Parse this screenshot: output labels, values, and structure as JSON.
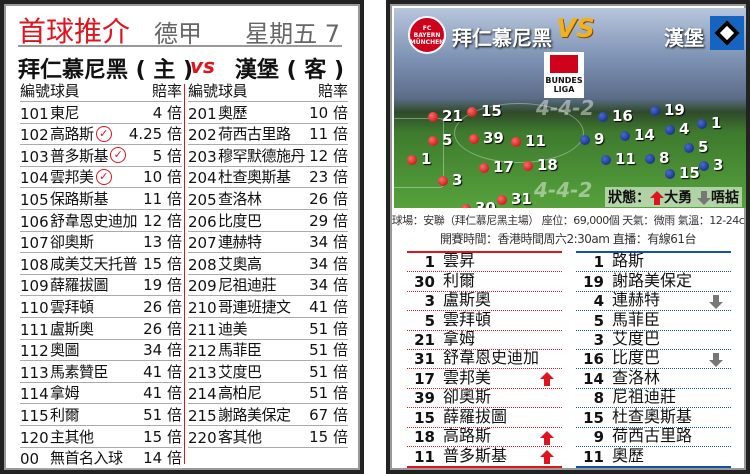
{
  "left": {
    "title": "首球推介",
    "league": "德甲",
    "day": "星期五 7",
    "home_team": "拜仁慕尼黑 ( 主 )",
    "vs": "vs",
    "away_team": "漢堡 ( 客 )",
    "headers": {
      "no": "編號",
      "player": "球員",
      "odds": "賠率"
    },
    "home_rows": [
      {
        "no": "101",
        "player": "東尼",
        "odds": "4 倍",
        "pick": false
      },
      {
        "no": "102",
        "player": "高路斯",
        "odds": "4.25 倍",
        "pick": true
      },
      {
        "no": "103",
        "player": "普多斯基",
        "odds": "5 倍",
        "pick": true
      },
      {
        "no": "104",
        "player": "雲邦美",
        "odds": "10 倍",
        "pick": true
      },
      {
        "no": "105",
        "player": "保路斯基",
        "odds": "11 倍",
        "pick": false
      },
      {
        "no": "106",
        "player": "舒韋恩史迪加",
        "odds": "12 倍",
        "pick": false
      },
      {
        "no": "107",
        "player": "卻奧斯",
        "odds": "13 倍",
        "pick": false
      },
      {
        "no": "108",
        "player": "咸美艾天托普",
        "odds": "15 倍",
        "pick": false
      },
      {
        "no": "109",
        "player": "薛羅拔圖",
        "odds": "19 倍",
        "pick": false
      },
      {
        "no": "110",
        "player": "雲拜頓",
        "odds": "26 倍",
        "pick": false
      },
      {
        "no": "111",
        "player": "盧斯奧",
        "odds": "26 倍",
        "pick": false
      },
      {
        "no": "112",
        "player": "奧圖",
        "odds": "34 倍",
        "pick": false
      },
      {
        "no": "113",
        "player": "馬素贊臣",
        "odds": "41 倍",
        "pick": false
      },
      {
        "no": "114",
        "player": "拿姆",
        "odds": "41 倍",
        "pick": false
      },
      {
        "no": "115",
        "player": "利爾",
        "odds": "51 倍",
        "pick": false
      },
      {
        "no": "120",
        "player": "主其他",
        "odds": "15 倍",
        "pick": false
      },
      {
        "no": "00",
        "player": "無首名入球",
        "odds": "14 倍",
        "pick": false
      }
    ],
    "away_rows": [
      {
        "no": "201",
        "player": "奧歷",
        "odds": "10 倍"
      },
      {
        "no": "202",
        "player": "荷西古里路",
        "odds": "11 倍"
      },
      {
        "no": "203",
        "player": "穆罕默德施丹",
        "odds": "12 倍"
      },
      {
        "no": "204",
        "player": "杜查奧斯基",
        "odds": "23 倍"
      },
      {
        "no": "205",
        "player": "查洛林",
        "odds": "26 倍"
      },
      {
        "no": "206",
        "player": "比度巴",
        "odds": "29 倍"
      },
      {
        "no": "207",
        "player": "連赫特",
        "odds": "34 倍"
      },
      {
        "no": "208",
        "player": "艾奧高",
        "odds": "34 倍"
      },
      {
        "no": "209",
        "player": "尼祖迪莊",
        "odds": "34 倍"
      },
      {
        "no": "210",
        "player": "哥連班捷文",
        "odds": "41 倍"
      },
      {
        "no": "211",
        "player": "迪美",
        "odds": "51 倍"
      },
      {
        "no": "212",
        "player": "馬菲臣",
        "odds": "51 倍"
      },
      {
        "no": "213",
        "player": "艾度巴",
        "odds": "51 倍"
      },
      {
        "no": "214",
        "player": "高柏尼",
        "odds": "51 倍"
      },
      {
        "no": "215",
        "player": "謝路美保定",
        "odds": "67 倍"
      },
      {
        "no": "220",
        "player": "客其他",
        "odds": "15 倍"
      }
    ]
  },
  "right": {
    "home_team": "拜仁慕尼黑",
    "vs": "VS",
    "away_team": "漢堡",
    "home_logo_text": "FC BAYERN MÜNCHEN",
    "league_logo_text": "BUNDES LIGA",
    "formation_home": "4-4-2",
    "formation_away": "4-4-2",
    "home_numbers": [
      "21",
      "15",
      "5",
      "39",
      "11",
      "1",
      "17",
      "18",
      "3",
      "31",
      "30"
    ],
    "away_numbers": [
      "16",
      "19",
      "1",
      "9",
      "14",
      "4",
      "5",
      "11",
      "8",
      "3",
      "15"
    ],
    "status_label": "狀態：",
    "status_good": "大勇",
    "status_bad": "唔掂",
    "venue": "球場：安聯（拜仁慕尼黑主場） 座位：69,000個 天氣：微雨 氣溫：12-24c",
    "kickoff": "開賽時間：香港時間周六2:30am 直播：有線61台",
    "home_list": [
      {
        "num": "1",
        "name": "雲昇",
        "form": ""
      },
      {
        "num": "30",
        "name": "利爾",
        "form": ""
      },
      {
        "num": "3",
        "name": "盧斯奧",
        "form": ""
      },
      {
        "num": "5",
        "name": "雲拜頓",
        "form": ""
      },
      {
        "num": "21",
        "name": "拿姆",
        "form": ""
      },
      {
        "num": "31",
        "name": "舒韋恩史迪加",
        "form": ""
      },
      {
        "num": "17",
        "name": "雲邦美",
        "form": "up"
      },
      {
        "num": "39",
        "name": "卻奧斯",
        "form": ""
      },
      {
        "num": "15",
        "name": "薛羅拔圖",
        "form": ""
      },
      {
        "num": "18",
        "name": "高路斯",
        "form": "up"
      },
      {
        "num": "11",
        "name": "普多斯基",
        "form": "up"
      }
    ],
    "away_list": [
      {
        "num": "1",
        "name": "路斯",
        "form": ""
      },
      {
        "num": "19",
        "name": "謝路美保定",
        "form": ""
      },
      {
        "num": "4",
        "name": "連赫特",
        "form": "down"
      },
      {
        "num": "5",
        "name": "馬菲臣",
        "form": ""
      },
      {
        "num": "3",
        "name": "艾度巴",
        "form": ""
      },
      {
        "num": "16",
        "name": "比度巴",
        "form": "down"
      },
      {
        "num": "14",
        "name": "查洛林",
        "form": ""
      },
      {
        "num": "8",
        "name": "尼祖迪莊",
        "form": ""
      },
      {
        "num": "15",
        "name": "杜查奧斯基",
        "form": ""
      },
      {
        "num": "9",
        "name": "荷西古里路",
        "form": ""
      },
      {
        "num": "11",
        "name": "奧歷",
        "form": ""
      }
    ]
  },
  "colors": {
    "red": "#e0141e",
    "blue": "#1a4fa8",
    "gray_arrow": "#777777"
  }
}
